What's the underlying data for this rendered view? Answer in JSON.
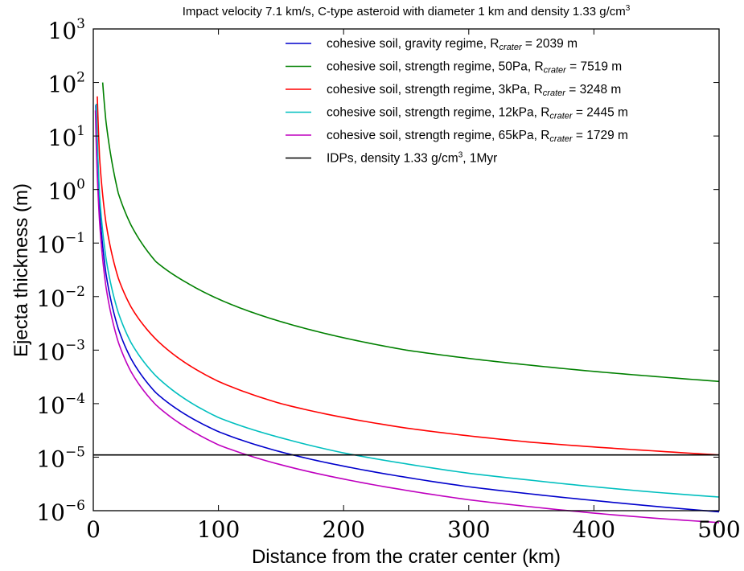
{
  "chart_data": {
    "type": "line",
    "title_parts": [
      "Impact velocity 7.1 km/s, C-type asteroid with diameter 1 km and density 1.33 g/cm",
      "3"
    ],
    "xlabel": "Distance from the crater center (km)",
    "ylabel": "Ejecta thickness (m)",
    "xlim": [
      0,
      500
    ],
    "ylim": [
      1e-06,
      1000
    ],
    "yscale": "log",
    "x_ticks": [
      "0",
      "100",
      "200",
      "300",
      "400",
      "500"
    ],
    "y_ticks": [
      {
        "base": "10",
        "exp": "−6"
      },
      {
        "base": "10",
        "exp": "−5"
      },
      {
        "base": "10",
        "exp": "−4"
      },
      {
        "base": "10",
        "exp": "−3"
      },
      {
        "base": "10",
        "exp": "−2"
      },
      {
        "base": "10",
        "exp": "−1"
      },
      {
        "base": "10",
        "exp": "0"
      },
      {
        "base": "10",
        "exp": "1"
      },
      {
        "base": "10",
        "exp": "2"
      },
      {
        "base": "10",
        "exp": "3"
      }
    ],
    "grid": false,
    "legend_position": "top-right",
    "series": [
      {
        "label_parts": [
          "cohesive soil, gravity regime, R",
          "crater",
          " = 2039 m"
        ],
        "color": "#0000cc",
        "x": [
          2,
          5,
          10,
          20,
          30,
          50,
          75,
          100,
          150,
          200,
          250,
          300,
          350,
          400,
          450,
          500
        ],
        "y": [
          38,
          0.45,
          0.028,
          0.0025,
          0.0007,
          0.00016,
          6e-05,
          3e-05,
          1.25e-05,
          6.8e-06,
          4.2e-06,
          2.8e-06,
          2.05e-06,
          1.55e-06,
          1.2e-06,
          9.5e-07
        ]
      },
      {
        "label_parts": [
          "cohesive soil, strength regime, 50Pa, R",
          "crater",
          " = 7519 m"
        ],
        "color": "#008000",
        "x": [
          7.5,
          10,
          20,
          30,
          50,
          75,
          100,
          150,
          200,
          250,
          300,
          350,
          400,
          450,
          500
        ],
        "y": [
          100,
          20,
          0.85,
          0.22,
          0.045,
          0.018,
          0.009,
          0.0034,
          0.0017,
          0.001,
          0.0007,
          0.00052,
          0.0004,
          0.00032,
          0.00026
        ]
      },
      {
        "label_parts": [
          "cohesive soil, strength regime, 3kPa, R",
          "crater",
          " = 3248 m"
        ],
        "color": "#ff0000",
        "x": [
          3.2,
          5,
          10,
          20,
          30,
          50,
          75,
          100,
          150,
          200,
          250,
          300,
          350,
          400,
          450,
          500
        ],
        "y": [
          55,
          4,
          0.25,
          0.022,
          0.0065,
          0.0016,
          0.00055,
          0.00026,
          0.0001,
          5.5e-05,
          3.5e-05,
          2.5e-05,
          1.9e-05,
          1.55e-05,
          1.3e-05,
          1.1e-05
        ]
      },
      {
        "label_parts": [
          "cohesive soil, strength regime, 12kPa, R",
          "crater",
          " = 2445 m"
        ],
        "color": "#00bfbf",
        "x": [
          2.4,
          5,
          10,
          20,
          30,
          50,
          75,
          100,
          150,
          200,
          250,
          300,
          350,
          400,
          450,
          500
        ],
        "y": [
          40,
          0.8,
          0.055,
          0.005,
          0.0014,
          0.00033,
          0.000115,
          5.5e-05,
          2.3e-05,
          1.2e-05,
          7.5e-06,
          5e-06,
          3.7e-06,
          2.8e-06,
          2.2e-06,
          1.8e-06
        ]
      },
      {
        "label_parts": [
          "cohesive soil, strength regime, 65kPa, R",
          "crater",
          " = 1729 m"
        ],
        "color": "#bf00bf",
        "x": [
          1.7,
          5,
          10,
          20,
          30,
          50,
          75,
          100,
          150,
          200,
          250,
          300,
          350,
          400,
          450,
          500
        ],
        "y": [
          30,
          0.25,
          0.016,
          0.0014,
          0.0004,
          9.5e-05,
          3.5e-05,
          1.7e-05,
          7.2e-06,
          3.9e-06,
          2.4e-06,
          1.6e-06,
          1.18e-06,
          9e-07,
          7.2e-07,
          6e-07
        ]
      },
      {
        "label_parts": [
          "IDPs, density 1.33 g/cm",
          "3",
          ", 1Myr"
        ],
        "color": "#000000",
        "x": [
          0,
          500
        ],
        "y": [
          1.1e-05,
          1.1e-05
        ]
      }
    ]
  }
}
